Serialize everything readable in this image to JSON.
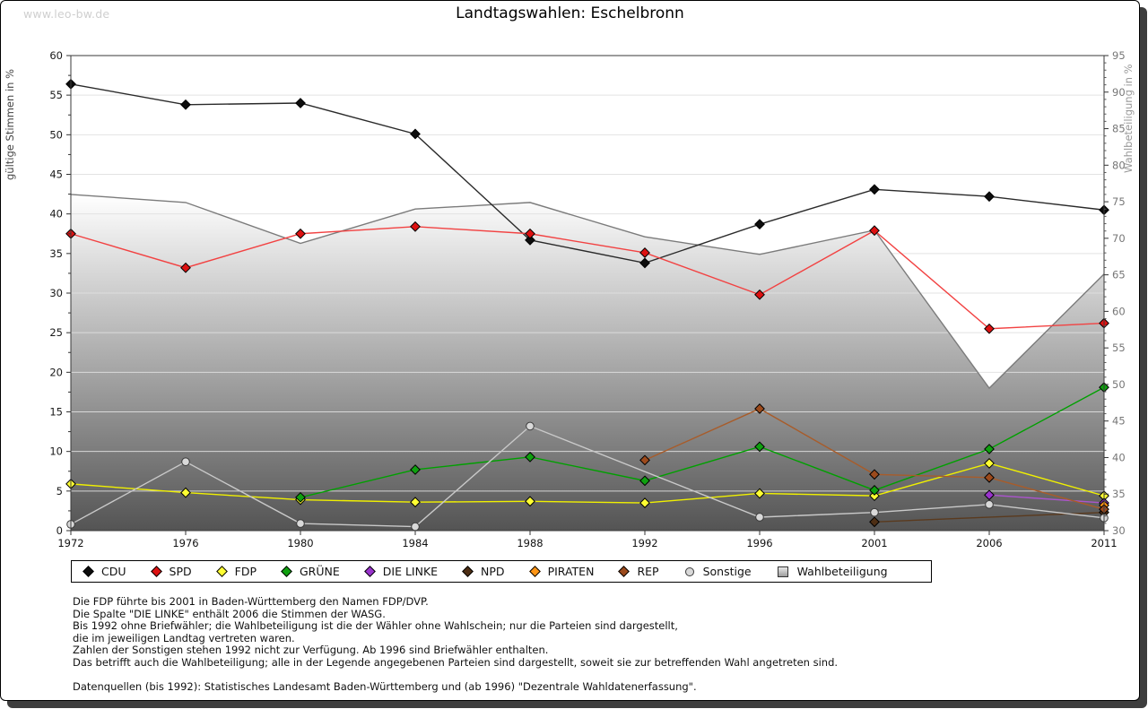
{
  "page": {
    "watermark": "www.leo-bw.de",
    "title": "Landtagswahlen: Eschelbronn"
  },
  "chart_data": {
    "type": "line",
    "title": "Landtagswahlen: Eschelbronn",
    "x_categories": [
      "1972",
      "1976",
      "1980",
      "1984",
      "1988",
      "1992",
      "1996",
      "2001",
      "2006",
      "2011"
    ],
    "left_axis": {
      "label": "gültige Stimmen in %",
      "min": 0,
      "max": 60,
      "tick_step": 5
    },
    "right_axis": {
      "label": "Wahlbeteiligung in %",
      "min": 30,
      "max": 95,
      "tick_step": 5
    },
    "grid": "horizontal",
    "legend_position": "bottom",
    "series": [
      {
        "id": "wahlbeteiligung",
        "name": "Wahlbeteiligung",
        "axis": "right",
        "render": "area",
        "marker": "square",
        "color": "#c2c2c2",
        "line_color": "#7b7b7b",
        "connect_gaps": false,
        "values": [
          76.0,
          74.9,
          69.3,
          74.0,
          74.9,
          70.2,
          67.8,
          71.1,
          49.5,
          65.1
        ]
      },
      {
        "id": "cdu",
        "name": "CDU",
        "axis": "left",
        "render": "line",
        "marker": "diamond",
        "color": "#0d0d0d",
        "line_color": "#2a2a2a",
        "connect_gaps": false,
        "values": [
          56.4,
          53.8,
          54.0,
          50.1,
          36.7,
          33.8,
          38.7,
          43.1,
          42.2,
          40.5
        ]
      },
      {
        "id": "spd",
        "name": "SPD",
        "axis": "left",
        "render": "line",
        "marker": "diamond",
        "color": "#dd1111",
        "line_color": "#f24242",
        "connect_gaps": false,
        "values": [
          37.5,
          33.2,
          37.5,
          38.4,
          37.5,
          35.1,
          29.8,
          37.9,
          25.5,
          26.2
        ]
      },
      {
        "id": "fdp",
        "name": "FDP",
        "axis": "left",
        "render": "line",
        "marker": "diamond",
        "color": "#ffff33",
        "line_color": "#f0f000",
        "connect_gaps": false,
        "values": [
          5.9,
          4.8,
          3.9,
          3.6,
          3.7,
          3.5,
          4.7,
          4.4,
          8.5,
          4.4
        ]
      },
      {
        "id": "gruene",
        "name": "GRÜNE",
        "axis": "left",
        "render": "line",
        "marker": "diamond",
        "color": "#0fa00f",
        "line_color": "#00a000",
        "connect_gaps": false,
        "values": [
          null,
          null,
          4.2,
          7.7,
          9.3,
          6.3,
          10.6,
          5.1,
          10.3,
          18.1
        ]
      },
      {
        "id": "die-linke",
        "name": "DIE LINKE",
        "axis": "left",
        "render": "line",
        "marker": "diamond",
        "color": "#9933cc",
        "line_color": "#aa55cc",
        "connect_gaps": false,
        "values": [
          null,
          null,
          null,
          null,
          null,
          null,
          null,
          null,
          4.5,
          3.5
        ]
      },
      {
        "id": "npd",
        "name": "NPD",
        "axis": "left",
        "render": "line",
        "marker": "diamond",
        "color": "#4d2e14",
        "line_color": "#5a3a1e",
        "connect_gaps": true,
        "values": [
          null,
          null,
          null,
          null,
          null,
          null,
          null,
          1.1,
          null,
          2.3
        ]
      },
      {
        "id": "piraten",
        "name": "PIRATEN",
        "axis": "left",
        "render": "line",
        "marker": "diamond",
        "color": "#ff9514",
        "line_color": "#ff9514",
        "connect_gaps": false,
        "values": [
          null,
          null,
          null,
          null,
          null,
          null,
          null,
          null,
          null,
          3.2
        ]
      },
      {
        "id": "rep",
        "name": "REP",
        "axis": "left",
        "render": "line",
        "marker": "diamond",
        "color": "#9c4a1c",
        "line_color": "#a85c2a",
        "connect_gaps": false,
        "values": [
          null,
          null,
          null,
          null,
          null,
          8.9,
          15.4,
          7.1,
          6.7,
          2.7
        ]
      },
      {
        "id": "sonstige",
        "name": "Sonstige",
        "axis": "left",
        "render": "line",
        "marker": "circle",
        "color": "#d9d9d9",
        "line_color": "#c9c9c9",
        "connect_gaps": true,
        "values": [
          0.8,
          8.7,
          0.9,
          0.5,
          13.2,
          null,
          1.7,
          2.3,
          3.3,
          1.6
        ]
      }
    ]
  },
  "legend_order": [
    "cdu",
    "spd",
    "fdp",
    "gruene",
    "die-linke",
    "npd",
    "piraten",
    "rep",
    "sonstige",
    "wahlbeteiligung"
  ],
  "notes": [
    "Die FDP führte bis 2001 in Baden-Württemberg den Namen FDP/DVP.",
    "Die Spalte \"DIE LINKE\" enthält 2006 die Stimmen der WASG.",
    "Bis 1992 ohne Briefwähler; die Wahlbeteiligung ist die der Wähler ohne Wahlschein; nur die Parteien sind dargestellt,",
    "die im jeweiligen Landtag vertreten waren.",
    "Zahlen der Sonstigen stehen 1992 nicht zur Verfügung. Ab 1996 sind Briefwähler enthalten.",
    "Das betrifft auch die Wahlbeteiligung; alle in der Legende angegebenen Parteien sind dargestellt, soweit sie zur betreffenden Wahl angetreten sind."
  ],
  "source": "Datenquellen (bis 1992): Statistisches Landesamt Baden-Württemberg und (ab 1996) \"Dezentrale Wahldatenerfassung\"."
}
